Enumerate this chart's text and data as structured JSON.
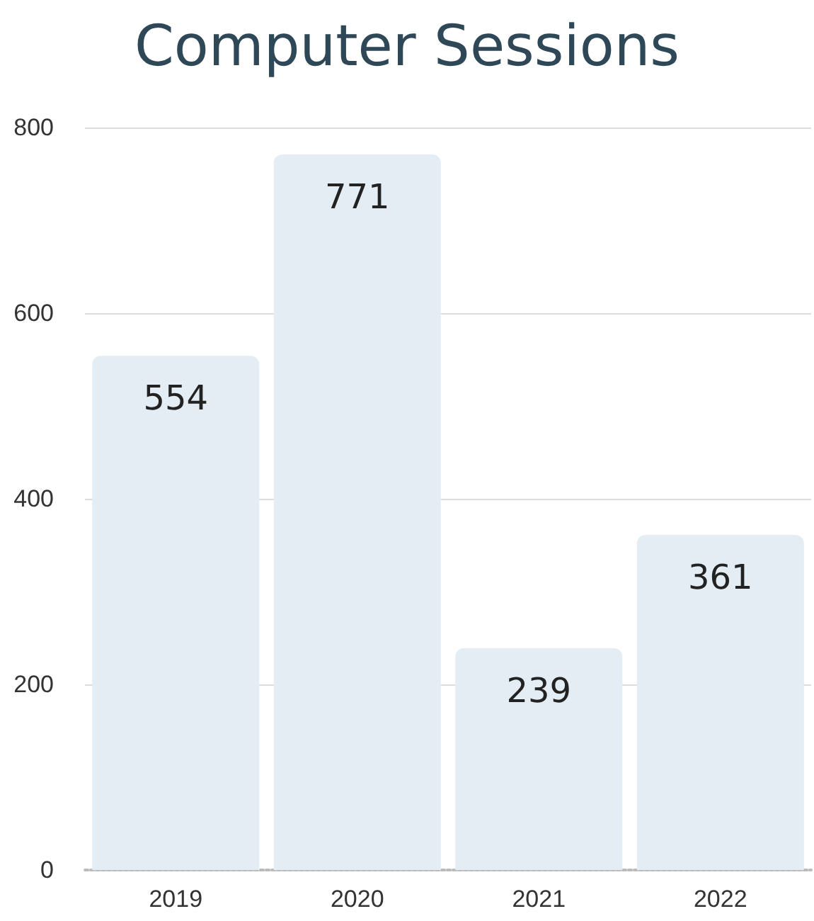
{
  "chart_data": {
    "type": "bar",
    "title": "Computer Sessions",
    "categories": [
      "2019",
      "2020",
      "2021",
      "2022"
    ],
    "values": [
      554,
      771,
      239,
      361
    ],
    "color": "#e3edf3",
    "ylim": [
      0,
      800
    ],
    "yticks": [
      0,
      200,
      400,
      600,
      800
    ],
    "grid": "y",
    "data_labels": true
  }
}
